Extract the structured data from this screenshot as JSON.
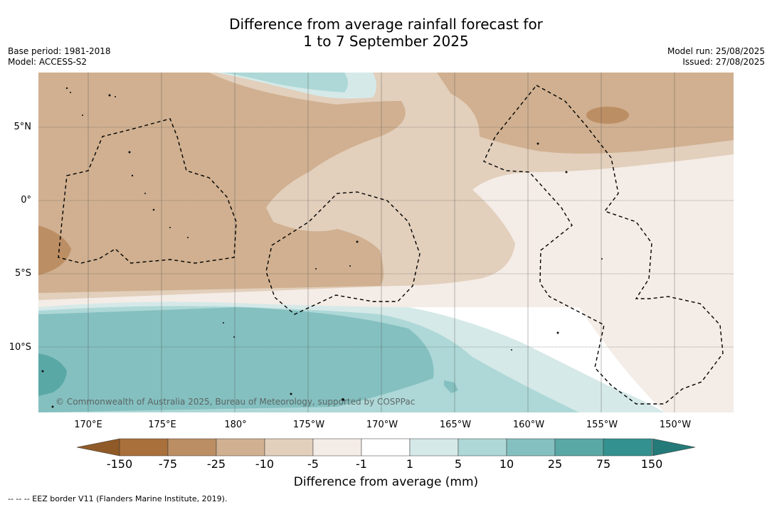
{
  "title": {
    "line1": "Difference from average rainfall forecast for",
    "line2": "1 to 7 September 2025"
  },
  "meta_left": {
    "base_period": "Base period: 1981-2018",
    "model": "Model: ACCESS-S2"
  },
  "meta_right": {
    "model_run": "Model run: 25/08/2025",
    "issued": "Issued: 27/08/2025"
  },
  "lat_labels": [
    "5°N",
    "0°",
    "5°S",
    "10°S"
  ],
  "lon_labels": [
    "170°E",
    "175°E",
    "180°",
    "175°W",
    "170°W",
    "165°W",
    "160°W",
    "155°W",
    "150°W"
  ],
  "colorbar": {
    "ticks": [
      "-150",
      "-75",
      "-25",
      "-10",
      "-5",
      "-1",
      "1",
      "5",
      "10",
      "25",
      "75",
      "150"
    ],
    "colors": [
      "#a9703b",
      "#bc8e64",
      "#d0b090",
      "#e2cfbc",
      "#f4ece6",
      "#ffffff",
      "#d5e9e8",
      "#add8d7",
      "#84c0bf",
      "#59a8a6",
      "#33928f"
    ],
    "under_color": "#8f5a27",
    "over_color": "#247a78",
    "label": "Difference from average (mm)"
  },
  "copyright": "© Commonwealth of Australia 2025, Bureau of Meteorology, supported by COSPPac",
  "footer": "--  --  -- EEZ border V11 (Flanders Marine Institute, 2019)."
}
